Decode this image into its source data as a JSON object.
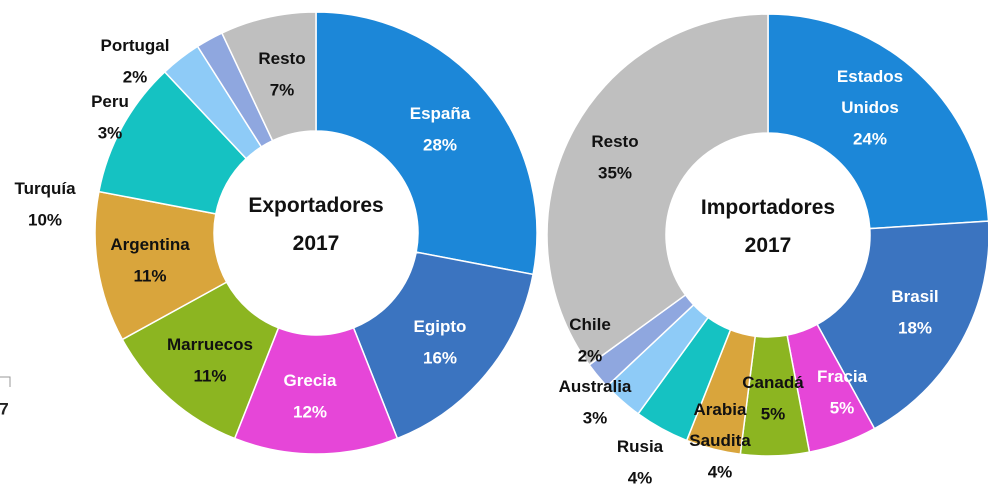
{
  "chart_data": [
    {
      "type": "donut",
      "title": "Exportadores 2017",
      "categories": [
        "España",
        "Egipto",
        "Grecia",
        "Marruecos",
        "Argentina",
        "Turquía",
        "Peru",
        "Portugal",
        "Resto"
      ],
      "values": [
        28,
        16,
        12,
        11,
        11,
        10,
        3,
        2,
        7
      ],
      "value_labels": [
        "28%",
        "16%",
        "12%",
        "11%",
        "11%",
        "10%",
        "3%",
        "2%",
        "7%"
      ],
      "colors": [
        "#1c87d8",
        "#3b74c0",
        "#e646d8",
        "#8cb521",
        "#d9a53c",
        "#15c2c2",
        "#8ecbf7",
        "#8fa7df",
        "#bfbfbf"
      ]
    },
    {
      "type": "donut",
      "title": "Importadores 2017",
      "categories": [
        "Estados Unidos",
        "Brasil",
        "Fracia",
        "Canadá",
        "Arabia Saudita",
        "Rusia",
        "Australia",
        "Chile",
        "Resto"
      ],
      "values": [
        24,
        18,
        5,
        5,
        4,
        4,
        3,
        2,
        35
      ],
      "value_labels": [
        "24%",
        "18%",
        "5%",
        "5%",
        "4%",
        "4%",
        "3%",
        "2%",
        "35%"
      ],
      "colors": [
        "#1c87d8",
        "#3b74c0",
        "#e646d8",
        "#8cb521",
        "#d9a53c",
        "#15c2c2",
        "#8ecbf7",
        "#8fa7df",
        "#bfbfbf"
      ]
    }
  ],
  "fragment": "7"
}
